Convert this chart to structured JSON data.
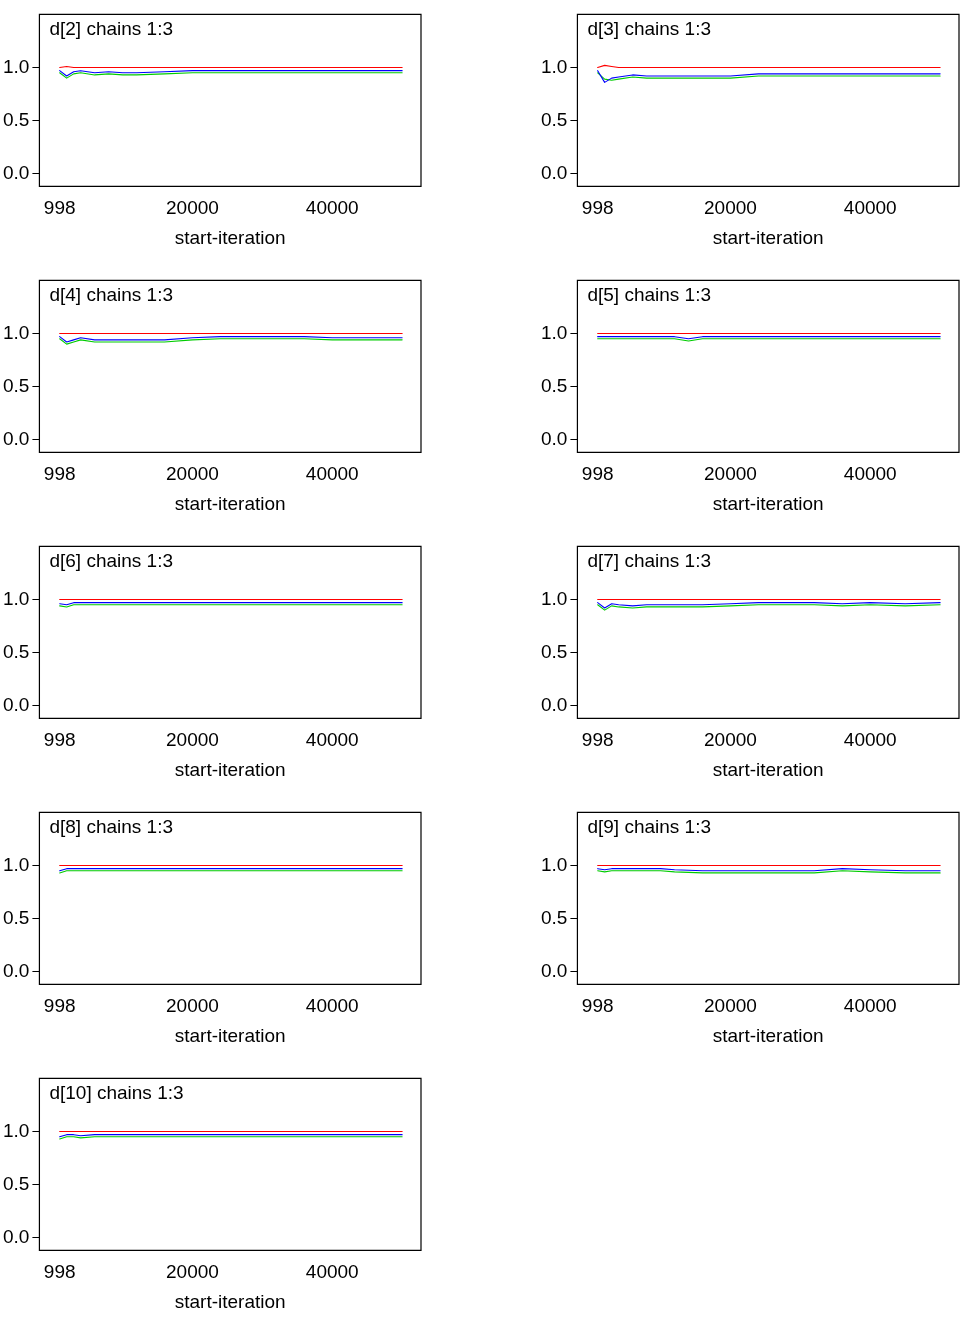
{
  "chart_data": [
    {
      "type": "line",
      "title": "d[2] chains 1:3",
      "xlabel": "start-iteration",
      "x": [
        998,
        2000,
        3000,
        4000,
        6000,
        8000,
        10000,
        12000,
        16000,
        20000,
        24000,
        28000,
        32000,
        36000,
        40000,
        45000,
        50000
      ],
      "xlim": [
        -1900,
        52700
      ],
      "xticks": [
        998,
        20000,
        40000
      ],
      "ylim": [
        -0.12,
        1.5
      ],
      "yticks": [
        {
          "value": 0,
          "label": "0.0"
        },
        {
          "value": 0.5,
          "label": "0.5"
        },
        {
          "value": 1,
          "label": "1.0"
        }
      ],
      "grid": false,
      "legend": false,
      "marker": "none",
      "series": [
        {
          "color": "#ff0000",
          "values": [
            1.0,
            1.01,
            1.0,
            1.0,
            1.0,
            1.0,
            1.0,
            1.0,
            1.0,
            1.0,
            1.0,
            1.0,
            1.0,
            1.0,
            1.0,
            1.0,
            1.0
          ]
        },
        {
          "color": "#0000ff",
          "values": [
            0.97,
            0.92,
            0.96,
            0.97,
            0.95,
            0.96,
            0.95,
            0.95,
            0.96,
            0.97,
            0.97,
            0.97,
            0.97,
            0.97,
            0.97,
            0.97,
            0.97
          ]
        },
        {
          "color": "#00cc00",
          "values": [
            0.95,
            0.9,
            0.94,
            0.95,
            0.93,
            0.94,
            0.93,
            0.93,
            0.94,
            0.95,
            0.95,
            0.95,
            0.95,
            0.95,
            0.95,
            0.95,
            0.95
          ]
        }
      ]
    },
    {
      "type": "line",
      "title": "d[3] chains 1:3",
      "xlabel": "start-iteration",
      "x": [
        998,
        2000,
        3000,
        4000,
        6000,
        8000,
        10000,
        12000,
        16000,
        20000,
        24000,
        28000,
        32000,
        36000,
        40000,
        45000,
        50000
      ],
      "xlim": [
        -1900,
        52700
      ],
      "xticks": [
        998,
        20000,
        40000
      ],
      "ylim": [
        -0.12,
        1.5
      ],
      "yticks": [
        {
          "value": 0,
          "label": "0.0"
        },
        {
          "value": 0.5,
          "label": "0.5"
        },
        {
          "value": 1,
          "label": "1.0"
        }
      ],
      "grid": false,
      "legend": false,
      "marker": "none",
      "series": [
        {
          "color": "#ff0000",
          "values": [
            1.0,
            1.02,
            1.01,
            1.0,
            1.0,
            1.0,
            1.0,
            1.0,
            1.0,
            1.0,
            1.0,
            1.0,
            1.0,
            1.0,
            1.0,
            1.0,
            1.0
          ]
        },
        {
          "color": "#0000ff",
          "values": [
            0.97,
            0.86,
            0.9,
            0.91,
            0.93,
            0.92,
            0.92,
            0.92,
            0.92,
            0.92,
            0.94,
            0.94,
            0.94,
            0.94,
            0.94,
            0.94,
            0.94
          ]
        },
        {
          "color": "#00cc00",
          "values": [
            0.95,
            0.89,
            0.88,
            0.89,
            0.91,
            0.9,
            0.9,
            0.9,
            0.9,
            0.9,
            0.92,
            0.92,
            0.92,
            0.92,
            0.92,
            0.92,
            0.92
          ]
        }
      ]
    },
    {
      "type": "line",
      "title": "d[4] chains 1:3",
      "xlabel": "start-iteration",
      "x": [
        998,
        2000,
        3000,
        4000,
        6000,
        8000,
        10000,
        12000,
        16000,
        20000,
        24000,
        28000,
        32000,
        36000,
        40000,
        45000,
        50000
      ],
      "xlim": [
        -1900,
        52700
      ],
      "xticks": [
        998,
        20000,
        40000
      ],
      "ylim": [
        -0.12,
        1.5
      ],
      "yticks": [
        {
          "value": 0,
          "label": "0.0"
        },
        {
          "value": 0.5,
          "label": "0.5"
        },
        {
          "value": 1,
          "label": "1.0"
        }
      ],
      "grid": false,
      "legend": false,
      "marker": "none",
      "series": [
        {
          "color": "#ff0000",
          "values": [
            1.0,
            1.0,
            1.0,
            1.0,
            1.0,
            1.0,
            1.0,
            1.0,
            1.0,
            1.0,
            1.0,
            1.0,
            1.0,
            1.0,
            1.0,
            1.0,
            1.0
          ]
        },
        {
          "color": "#0000ff",
          "values": [
            0.97,
            0.92,
            0.94,
            0.96,
            0.94,
            0.94,
            0.94,
            0.94,
            0.94,
            0.96,
            0.97,
            0.97,
            0.97,
            0.97,
            0.96,
            0.96,
            0.96
          ]
        },
        {
          "color": "#00cc00",
          "values": [
            0.95,
            0.9,
            0.92,
            0.94,
            0.92,
            0.92,
            0.92,
            0.92,
            0.92,
            0.94,
            0.95,
            0.95,
            0.95,
            0.95,
            0.94,
            0.94,
            0.94
          ]
        }
      ]
    },
    {
      "type": "line",
      "title": "d[5] chains 1:3",
      "xlabel": "start-iteration",
      "x": [
        998,
        2000,
        3000,
        4000,
        6000,
        8000,
        10000,
        12000,
        14000,
        16000,
        20000,
        24000,
        28000,
        32000,
        36000,
        40000,
        45000,
        50000
      ],
      "xlim": [
        -1900,
        52700
      ],
      "xticks": [
        998,
        20000,
        40000
      ],
      "ylim": [
        -0.12,
        1.5
      ],
      "yticks": [
        {
          "value": 0,
          "label": "0.0"
        },
        {
          "value": 0.5,
          "label": "0.5"
        },
        {
          "value": 1,
          "label": "1.0"
        }
      ],
      "grid": false,
      "legend": false,
      "marker": "none",
      "series": [
        {
          "color": "#ff0000",
          "values": [
            1.0,
            1.0,
            1.0,
            1.0,
            1.0,
            1.0,
            1.0,
            1.0,
            1.0,
            1.0,
            1.0,
            1.0,
            1.0,
            1.0,
            1.0,
            1.0,
            1.0,
            1.0
          ]
        },
        {
          "color": "#0000ff",
          "values": [
            0.97,
            0.97,
            0.97,
            0.97,
            0.97,
            0.97,
            0.97,
            0.97,
            0.95,
            0.97,
            0.97,
            0.97,
            0.97,
            0.97,
            0.97,
            0.97,
            0.97,
            0.97
          ]
        },
        {
          "color": "#00cc00",
          "values": [
            0.95,
            0.95,
            0.95,
            0.95,
            0.95,
            0.95,
            0.95,
            0.95,
            0.93,
            0.95,
            0.95,
            0.95,
            0.95,
            0.95,
            0.95,
            0.95,
            0.95,
            0.95
          ]
        }
      ]
    },
    {
      "type": "line",
      "title": "d[6] chains 1:3",
      "xlabel": "start-iteration",
      "x": [
        998,
        2000,
        3000,
        4000,
        6000,
        8000,
        10000,
        12000,
        16000,
        20000,
        24000,
        28000,
        32000,
        36000,
        40000,
        45000,
        50000
      ],
      "xlim": [
        -1900,
        52700
      ],
      "xticks": [
        998,
        20000,
        40000
      ],
      "ylim": [
        -0.12,
        1.5
      ],
      "yticks": [
        {
          "value": 0,
          "label": "0.0"
        },
        {
          "value": 0.5,
          "label": "0.5"
        },
        {
          "value": 1,
          "label": "1.0"
        }
      ],
      "grid": false,
      "legend": false,
      "marker": "none",
      "series": [
        {
          "color": "#ff0000",
          "values": [
            1.0,
            1.0,
            1.0,
            1.0,
            1.0,
            1.0,
            1.0,
            1.0,
            1.0,
            1.0,
            1.0,
            1.0,
            1.0,
            1.0,
            1.0,
            1.0,
            1.0
          ]
        },
        {
          "color": "#0000ff",
          "values": [
            0.96,
            0.95,
            0.97,
            0.97,
            0.97,
            0.97,
            0.97,
            0.97,
            0.97,
            0.97,
            0.97,
            0.97,
            0.97,
            0.97,
            0.97,
            0.97,
            0.97
          ]
        },
        {
          "color": "#00cc00",
          "values": [
            0.94,
            0.93,
            0.95,
            0.95,
            0.95,
            0.95,
            0.95,
            0.95,
            0.95,
            0.95,
            0.95,
            0.95,
            0.95,
            0.95,
            0.95,
            0.95,
            0.95
          ]
        }
      ]
    },
    {
      "type": "line",
      "title": "d[7] chains 1:3",
      "xlabel": "start-iteration",
      "x": [
        998,
        2000,
        3000,
        4000,
        6000,
        8000,
        10000,
        12000,
        16000,
        20000,
        24000,
        28000,
        32000,
        36000,
        40000,
        45000,
        50000
      ],
      "xlim": [
        -1900,
        52700
      ],
      "xticks": [
        998,
        20000,
        40000
      ],
      "ylim": [
        -0.12,
        1.5
      ],
      "yticks": [
        {
          "value": 0,
          "label": "0.0"
        },
        {
          "value": 0.5,
          "label": "0.5"
        },
        {
          "value": 1,
          "label": "1.0"
        }
      ],
      "grid": false,
      "legend": false,
      "marker": "none",
      "series": [
        {
          "color": "#ff0000",
          "values": [
            1.0,
            1.0,
            1.0,
            1.0,
            1.0,
            1.0,
            1.0,
            1.0,
            1.0,
            1.0,
            1.0,
            1.0,
            1.0,
            1.0,
            1.0,
            1.0,
            1.0
          ]
        },
        {
          "color": "#0000ff",
          "values": [
            0.97,
            0.92,
            0.96,
            0.95,
            0.94,
            0.95,
            0.95,
            0.95,
            0.95,
            0.96,
            0.97,
            0.97,
            0.97,
            0.96,
            0.97,
            0.96,
            0.97
          ]
        },
        {
          "color": "#00cc00",
          "values": [
            0.95,
            0.9,
            0.94,
            0.93,
            0.92,
            0.93,
            0.93,
            0.93,
            0.93,
            0.94,
            0.95,
            0.95,
            0.95,
            0.94,
            0.95,
            0.94,
            0.95
          ]
        }
      ]
    },
    {
      "type": "line",
      "title": "d[8] chains 1:3",
      "xlabel": "start-iteration",
      "x": [
        998,
        2000,
        3000,
        4000,
        6000,
        8000,
        10000,
        12000,
        16000,
        20000,
        24000,
        28000,
        32000,
        36000,
        40000,
        45000,
        50000
      ],
      "xlim": [
        -1900,
        52700
      ],
      "xticks": [
        998,
        20000,
        40000
      ],
      "ylim": [
        -0.12,
        1.5
      ],
      "yticks": [
        {
          "value": 0,
          "label": "0.0"
        },
        {
          "value": 0.5,
          "label": "0.5"
        },
        {
          "value": 1,
          "label": "1.0"
        }
      ],
      "grid": false,
      "legend": false,
      "marker": "none",
      "series": [
        {
          "color": "#ff0000",
          "values": [
            1.0,
            1.0,
            1.0,
            1.0,
            1.0,
            1.0,
            1.0,
            1.0,
            1.0,
            1.0,
            1.0,
            1.0,
            1.0,
            1.0,
            1.0,
            1.0,
            1.0
          ]
        },
        {
          "color": "#0000ff",
          "values": [
            0.95,
            0.97,
            0.97,
            0.97,
            0.97,
            0.97,
            0.97,
            0.97,
            0.97,
            0.97,
            0.97,
            0.97,
            0.97,
            0.97,
            0.97,
            0.97,
            0.97
          ]
        },
        {
          "color": "#00cc00",
          "values": [
            0.93,
            0.95,
            0.95,
            0.95,
            0.95,
            0.95,
            0.95,
            0.95,
            0.95,
            0.95,
            0.95,
            0.95,
            0.95,
            0.95,
            0.95,
            0.95,
            0.95
          ]
        }
      ]
    },
    {
      "type": "line",
      "title": "d[9] chains 1:3",
      "xlabel": "start-iteration",
      "x": [
        998,
        2000,
        3000,
        4000,
        6000,
        8000,
        10000,
        12000,
        16000,
        20000,
        24000,
        28000,
        32000,
        36000,
        40000,
        45000,
        50000
      ],
      "xlim": [
        -1900,
        52700
      ],
      "xticks": [
        998,
        20000,
        40000
      ],
      "ylim": [
        -0.12,
        1.5
      ],
      "yticks": [
        {
          "value": 0,
          "label": "0.0"
        },
        {
          "value": 0.5,
          "label": "0.5"
        },
        {
          "value": 1,
          "label": "1.0"
        }
      ],
      "grid": false,
      "legend": false,
      "marker": "none",
      "series": [
        {
          "color": "#ff0000",
          "values": [
            1.0,
            1.0,
            1.0,
            1.0,
            1.0,
            1.0,
            1.0,
            1.0,
            1.0,
            1.0,
            1.0,
            1.0,
            1.0,
            1.0,
            1.0,
            1.0,
            1.0
          ]
        },
        {
          "color": "#0000ff",
          "values": [
            0.97,
            0.96,
            0.97,
            0.97,
            0.97,
            0.97,
            0.97,
            0.96,
            0.95,
            0.95,
            0.95,
            0.95,
            0.95,
            0.97,
            0.96,
            0.95,
            0.95
          ]
        },
        {
          "color": "#00cc00",
          "values": [
            0.95,
            0.94,
            0.95,
            0.95,
            0.95,
            0.95,
            0.95,
            0.94,
            0.93,
            0.93,
            0.93,
            0.93,
            0.93,
            0.95,
            0.94,
            0.93,
            0.93
          ]
        }
      ]
    },
    {
      "type": "line",
      "title": "d[10] chains 1:3",
      "xlabel": "start-iteration",
      "x": [
        998,
        2000,
        3000,
        4000,
        6000,
        8000,
        10000,
        12000,
        16000,
        20000,
        24000,
        28000,
        32000,
        36000,
        40000,
        45000,
        50000
      ],
      "xlim": [
        -1900,
        52700
      ],
      "xticks": [
        998,
        20000,
        40000
      ],
      "ylim": [
        -0.12,
        1.5
      ],
      "yticks": [
        {
          "value": 0,
          "label": "0.0"
        },
        {
          "value": 0.5,
          "label": "0.5"
        },
        {
          "value": 1,
          "label": "1.0"
        }
      ],
      "grid": false,
      "legend": false,
      "marker": "none",
      "series": [
        {
          "color": "#ff0000",
          "values": [
            1.0,
            1.0,
            1.0,
            1.0,
            1.0,
            1.0,
            1.0,
            1.0,
            1.0,
            1.0,
            1.0,
            1.0,
            1.0,
            1.0,
            1.0,
            1.0,
            1.0
          ]
        },
        {
          "color": "#0000ff",
          "values": [
            0.95,
            0.97,
            0.97,
            0.96,
            0.97,
            0.97,
            0.97,
            0.97,
            0.97,
            0.97,
            0.97,
            0.97,
            0.97,
            0.97,
            0.97,
            0.97,
            0.97
          ]
        },
        {
          "color": "#00cc00",
          "values": [
            0.93,
            0.95,
            0.95,
            0.94,
            0.95,
            0.95,
            0.95,
            0.95,
            0.95,
            0.95,
            0.95,
            0.95,
            0.95,
            0.95,
            0.95,
            0.95,
            0.95
          ]
        }
      ]
    }
  ]
}
